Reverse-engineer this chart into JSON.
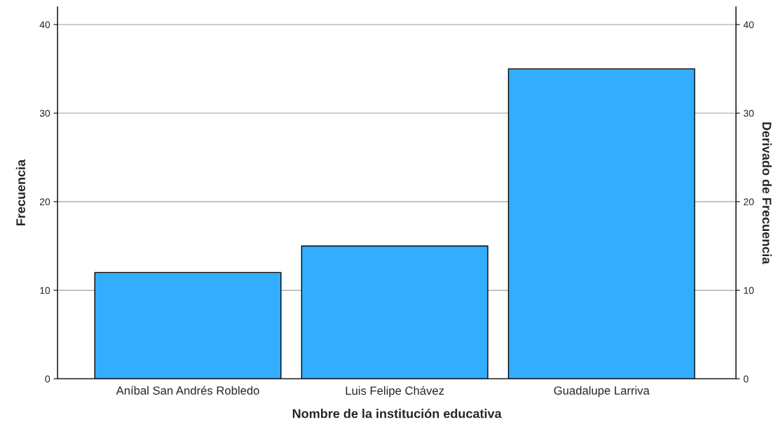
{
  "chart_data": {
    "type": "bar",
    "xlabel": "Nombre de la institución educativa",
    "ylabel": "Frecuencia",
    "y2label": "Derivado de Frecuencia",
    "categories": [
      "Aníbal San Andrés Robledo",
      "Luis Felipe Chávez",
      "Guadalupe Larriva"
    ],
    "series": [
      {
        "color": "#33adff",
        "values": [
          12,
          15,
          35
        ]
      }
    ],
    "ylim": [
      0,
      42
    ],
    "yticks": [
      0,
      10,
      20,
      30,
      40
    ],
    "y2lim": [
      0,
      42
    ],
    "y2ticks": [
      0,
      10,
      20,
      30,
      40
    ],
    "grid": "y"
  }
}
